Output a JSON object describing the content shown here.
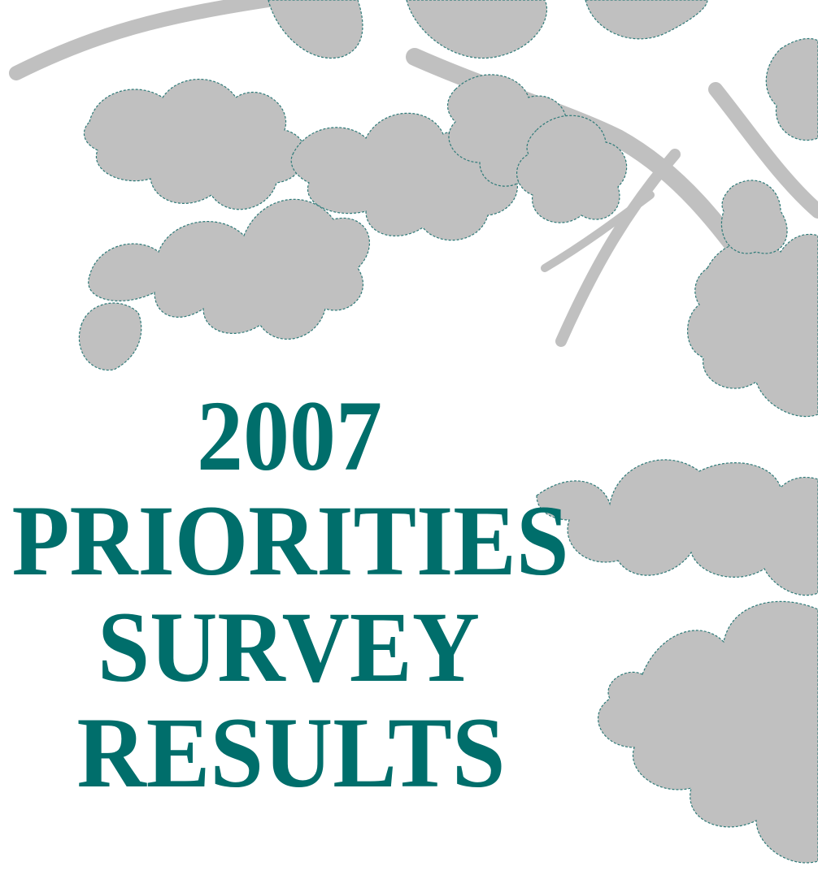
{
  "title_lines": [
    "2007",
    "PRIORITIES",
    "SURVEY",
    "RESULTS"
  ]
}
